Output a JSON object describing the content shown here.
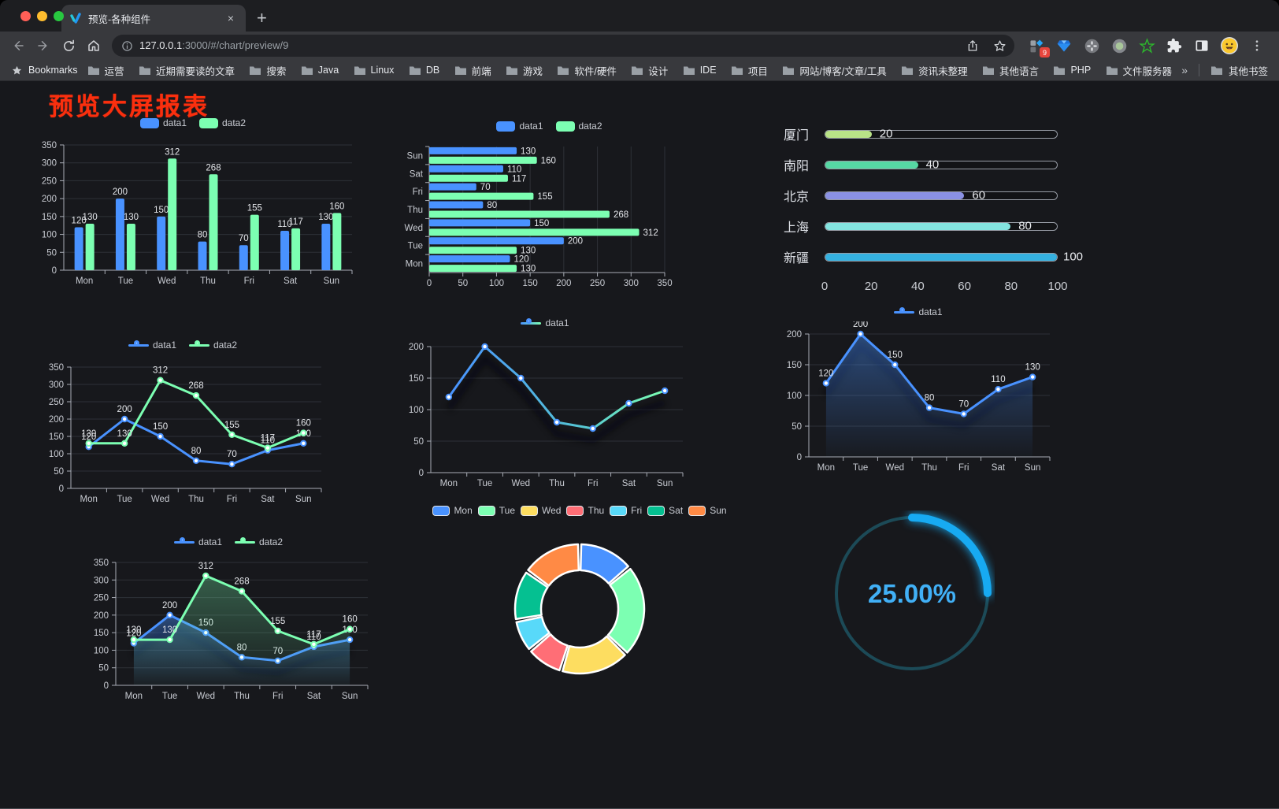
{
  "window": {
    "tab": {
      "title": "预览-各种组件",
      "close": "×",
      "new_tab": "+"
    },
    "toolbar": {
      "url_host": "127.0.0.1",
      "url_rest": ":3000/#/chart/preview/9",
      "extension_badge": "9"
    }
  },
  "bookmarks": {
    "label": "Bookmarks",
    "folders": [
      "运营",
      "近期需要读的文章",
      "搜索",
      "Java",
      "Linux",
      "DB",
      "前端",
      "游戏",
      "软件/硬件",
      "设计",
      "IDE",
      "项目",
      "网站/博客/文章/工具",
      "资讯未整理",
      "其他语言",
      "PHP",
      "文件服务器"
    ],
    "overflow": "»",
    "other": "其他书签"
  },
  "page": {
    "title": "预览大屏报表"
  },
  "chart_data": [
    {
      "id": "c1",
      "type": "bar",
      "categories": [
        "Mon",
        "Tue",
        "Wed",
        "Thu",
        "Fri",
        "Sat",
        "Sun"
      ],
      "series": [
        {
          "name": "data1",
          "color": "#4992ff",
          "values": [
            120,
            200,
            150,
            80,
            70,
            110,
            130
          ]
        },
        {
          "name": "data2",
          "color": "#7cffb2",
          "values": [
            130,
            130,
            312,
            268,
            155,
            117,
            160
          ]
        }
      ],
      "ylim": [
        0,
        350
      ],
      "interval": 50,
      "show_labels": true
    },
    {
      "id": "c2",
      "type": "bar-horizontal",
      "categories": [
        "Mon",
        "Tue",
        "Wed",
        "Thu",
        "Fri",
        "Sat",
        "Sun"
      ],
      "series": [
        {
          "name": "data1",
          "color": "#4992ff",
          "values": [
            120,
            200,
            150,
            80,
            70,
            110,
            130
          ]
        },
        {
          "name": "data2",
          "color": "#7cffb2",
          "values": [
            130,
            130,
            312,
            268,
            155,
            117,
            160
          ]
        }
      ],
      "xlim": [
        0,
        350
      ],
      "interval": 50,
      "show_labels": true
    },
    {
      "id": "c3",
      "type": "progress",
      "items": [
        {
          "label": "厦门",
          "value": 20,
          "color": "#b9e387"
        },
        {
          "label": "南阳",
          "value": 40,
          "color": "#56d7a4"
        },
        {
          "label": "北京",
          "value": 60,
          "color": "#8a91e4"
        },
        {
          "label": "上海",
          "value": 80,
          "color": "#84e4e0"
        },
        {
          "label": "新疆",
          "value": 100,
          "color": "#35b1e0"
        }
      ],
      "axis": [
        0,
        20,
        40,
        60,
        80,
        100
      ]
    },
    {
      "id": "c4",
      "type": "line",
      "categories": [
        "Mon",
        "Tue",
        "Wed",
        "Thu",
        "Fri",
        "Sat",
        "Sun"
      ],
      "series": [
        {
          "name": "data1",
          "color": "#4992ff",
          "values": [
            120,
            200,
            150,
            80,
            70,
            110,
            130
          ]
        },
        {
          "name": "data2",
          "color": "#7cffb2",
          "values": [
            130,
            130,
            312,
            268,
            155,
            117,
            160
          ]
        }
      ],
      "ylim": [
        0,
        350
      ],
      "interval": 50,
      "show_labels": true
    },
    {
      "id": "c5",
      "type": "line",
      "categories": [
        "Mon",
        "Tue",
        "Wed",
        "Thu",
        "Fri",
        "Sat",
        "Sun"
      ],
      "series": [
        {
          "name": "data1",
          "color": "#4992ff",
          "color2": "#7cffb2",
          "values": [
            120,
            200,
            150,
            80,
            70,
            110,
            130
          ],
          "shadow": true
        }
      ],
      "ylim": [
        0,
        200
      ],
      "interval": 50,
      "show_labels": false
    },
    {
      "id": "c6",
      "type": "area",
      "categories": [
        "Mon",
        "Tue",
        "Wed",
        "Thu",
        "Fri",
        "Sat",
        "Sun"
      ],
      "series": [
        {
          "name": "data1",
          "color": "#4992ff",
          "values": [
            120,
            200,
            150,
            80,
            70,
            110,
            130
          ],
          "shadow": true
        }
      ],
      "ylim": [
        0,
        200
      ],
      "interval": 50,
      "show_labels": true
    },
    {
      "id": "c7",
      "type": "area",
      "categories": [
        "Mon",
        "Tue",
        "Wed",
        "Thu",
        "Fri",
        "Sat",
        "Sun"
      ],
      "series": [
        {
          "name": "data1",
          "color": "#4992ff",
          "values": [
            120,
            200,
            150,
            80,
            70,
            110,
            130
          ],
          "shadow": true
        },
        {
          "name": "data2",
          "color": "#7cffb2",
          "values": [
            130,
            130,
            312,
            268,
            155,
            117,
            160
          ]
        }
      ],
      "ylim": [
        0,
        350
      ],
      "interval": 50,
      "show_labels": true
    },
    {
      "id": "c8",
      "type": "pie",
      "slices": [
        {
          "label": "Mon",
          "value": 120,
          "color": "#4992ff"
        },
        {
          "label": "Tue",
          "value": 200,
          "color": "#7cffb2"
        },
        {
          "label": "Wed",
          "value": 150,
          "color": "#fddd60"
        },
        {
          "label": "Thu",
          "value": 80,
          "color": "#ff6e76"
        },
        {
          "label": "Fri",
          "value": 70,
          "color": "#58d9f9"
        },
        {
          "label": "Sat",
          "value": 110,
          "color": "#05c091"
        },
        {
          "label": "Sun",
          "value": 130,
          "color": "#ff8a45"
        }
      ]
    },
    {
      "id": "c9",
      "type": "gauge",
      "value": 25,
      "display": "25.00%",
      "color": "#17aaf2",
      "track_color": "#1c4a57",
      "text_color": "#41b0f6"
    }
  ]
}
